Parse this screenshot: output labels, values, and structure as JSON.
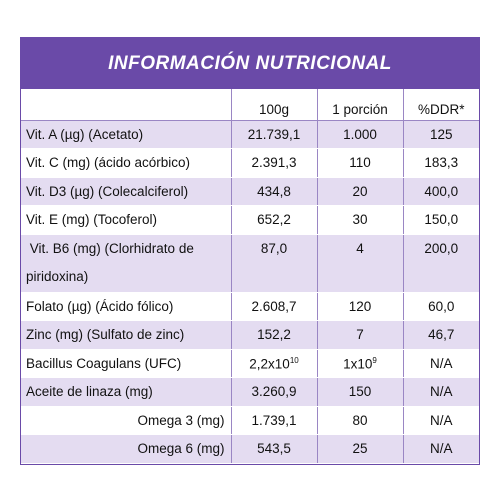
{
  "title": "INFORMACIÓN NUTRICIONAL",
  "headers": [
    "",
    "100g",
    "1 porción",
    "%DDR*"
  ],
  "rows": [
    {
      "name": "Vit. A (µg) (Acetato)",
      "v100": "21.739,1",
      "portion": "1.000",
      "ddr": "125"
    },
    {
      "name": "Vit. C (mg) (ácido acórbico)",
      "v100": "2.391,3",
      "portion": "110",
      "ddr": "183,3"
    },
    {
      "name": "Vit. D3 (µg) (Colecalciferol)",
      "v100": "434,8",
      "portion": "20",
      "ddr": "400,0"
    },
    {
      "name": "Vit. E (mg) (Tocoferol)",
      "v100": "652,2",
      "portion": "30",
      "ddr": "150,0"
    },
    {
      "name": " Vit. B6 (mg) (Clorhidrato de piridoxina)",
      "v100": "87,0",
      "portion": "4",
      "ddr": "200,0"
    },
    {
      "name": "Folato (µg) (Ácido fólico)",
      "v100": "2.608,7",
      "portion": "120",
      "ddr": "60,0"
    },
    {
      "name": "Zinc (mg) (Sulfato de zinc)",
      "v100": "152,2",
      "portion": "7",
      "ddr": "46,7"
    },
    {
      "name": "Bacillus Coagulans (UFC)",
      "v100_base": "2,2x10",
      "v100_exp": "10",
      "portion_base": "1x10",
      "portion_exp": "9",
      "ddr": "N/A"
    },
    {
      "name": "Aceite de linaza (mg)",
      "v100": "3.260,9",
      "portion": "150",
      "ddr": "N/A"
    },
    {
      "name": "Omega 3 (mg)",
      "v100": "1.739,1",
      "portion": "80",
      "ddr": "N/A"
    },
    {
      "name": "Omega 6 (mg)",
      "v100": "543,5",
      "portion": "25",
      "ddr": "N/A"
    }
  ],
  "colors": {
    "accent": "#6a4aa8",
    "row_tint": "#e4dcf1"
  }
}
